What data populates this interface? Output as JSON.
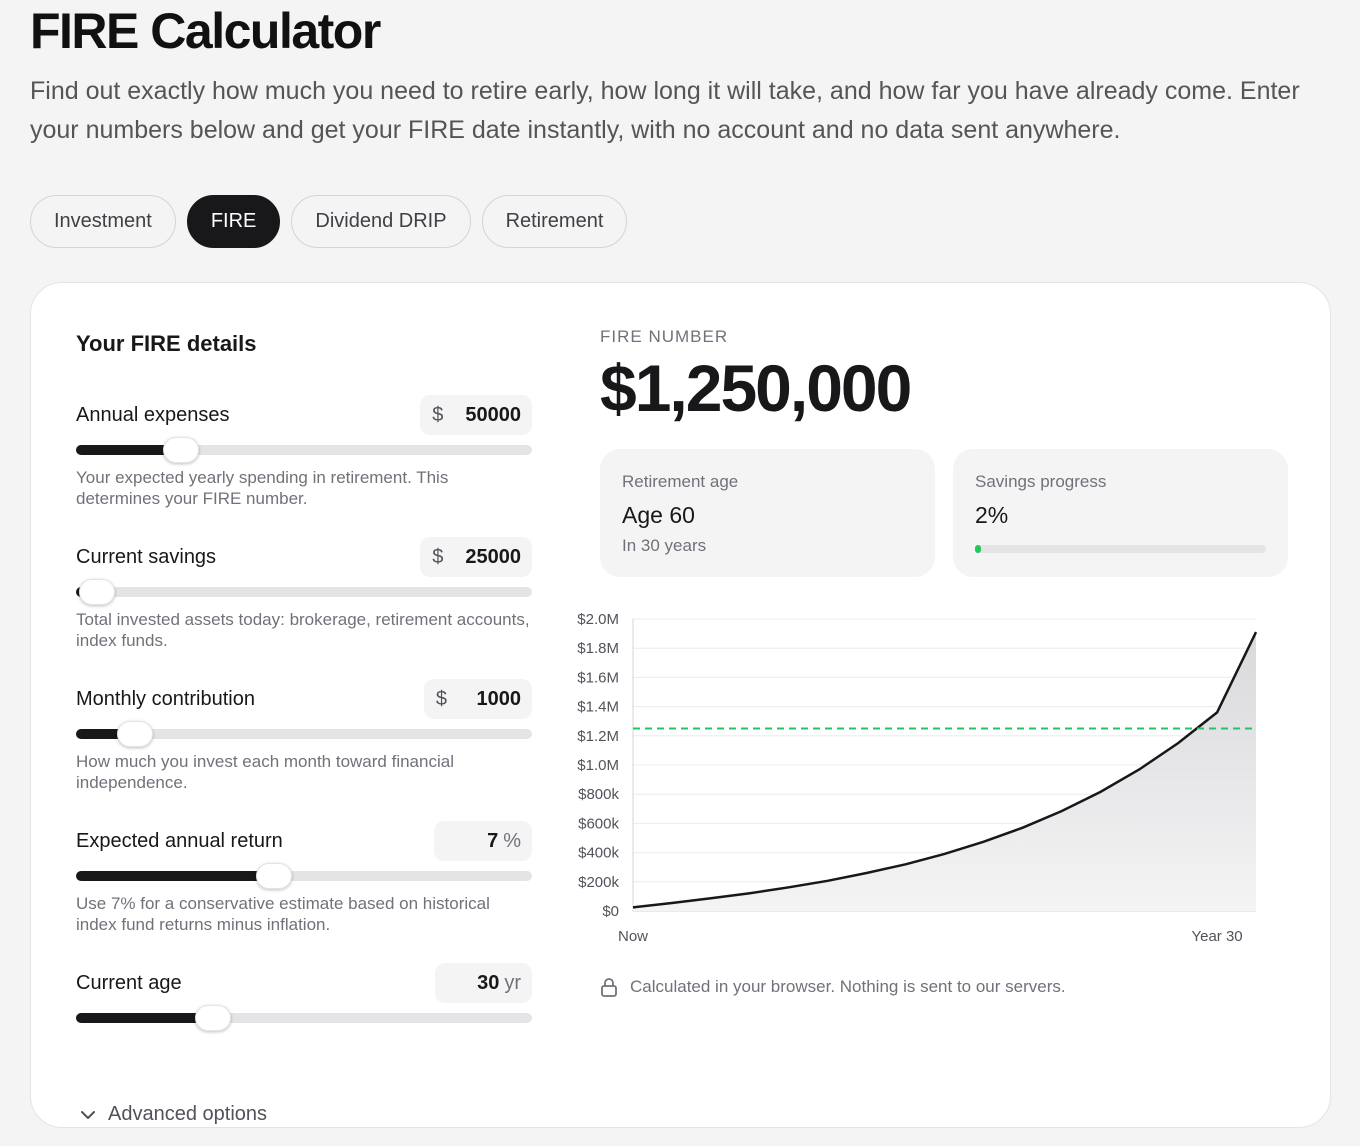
{
  "page": {
    "title": "FIRE Calculator",
    "intro": "Find out exactly how much you need to retire early, how long it will take, and how far you have already come. Enter your numbers below and get your FIRE date instantly, with no account and no data sent anywhere."
  },
  "tabs": [
    {
      "label": "Investment",
      "active": false
    },
    {
      "label": "FIRE",
      "active": true
    },
    {
      "label": "Dividend DRIP",
      "active": false
    },
    {
      "label": "Retirement",
      "active": false
    }
  ],
  "form": {
    "title": "Your FIRE details",
    "fields": [
      {
        "label": "Annual expenses",
        "prefix": "$",
        "value": "50000",
        "suffix": "",
        "slider_fraction": 0.23,
        "help": "Your expected yearly spending in retirement. This determines your FIRE number."
      },
      {
        "label": "Current savings",
        "prefix": "$",
        "value": "25000",
        "suffix": "",
        "slider_fraction": 0.045,
        "help": "Total invested assets today: brokerage, retirement accounts, index funds."
      },
      {
        "label": "Monthly contribution",
        "prefix": "$",
        "value": "1000",
        "suffix": "",
        "slider_fraction": 0.13,
        "help": "How much you invest each month toward financial independence."
      },
      {
        "label": "Expected annual return",
        "prefix": "",
        "value": "7",
        "suffix": "%",
        "slider_fraction": 0.435,
        "help": "Use 7% for a conservative estimate based on historical index fund returns minus inflation."
      },
      {
        "label": "Current age",
        "prefix": "",
        "value": "30",
        "suffix": "yr",
        "slider_fraction": 0.3,
        "help": ""
      }
    ],
    "advanced_label": "Advanced options"
  },
  "result": {
    "kicker": "FIRE NUMBER",
    "fire_number": "$1,250,000",
    "retirement": {
      "label": "Retirement age",
      "value": "Age 60",
      "sub": "In 30 years"
    },
    "savings": {
      "label": "Savings progress",
      "value": "2%",
      "progress": 0.02
    },
    "note": "Calculated in your browser. Nothing is sent to our servers."
  },
  "colors": {
    "accent": "#18181b",
    "progress": "#22c55e",
    "target_line": "#22c55e"
  },
  "chart_data": {
    "type": "area",
    "x_ticks": [
      "Now",
      "Year 30"
    ],
    "y_ticks": [
      "$0",
      "$200k",
      "$400k",
      "$600k",
      "$800k",
      "$1.0M",
      "$1.2M",
      "$1.4M",
      "$1.6M",
      "$1.8M",
      "$2.0M"
    ],
    "ylim": [
      0,
      2000000
    ],
    "x_range": [
      0,
      32
    ],
    "target": 1250000,
    "x": [
      0,
      2,
      4,
      6,
      8,
      10,
      12,
      14,
      16,
      18,
      20,
      22,
      24,
      26,
      28,
      30,
      32
    ],
    "y": [
      25000,
      55000,
      87000,
      122000,
      162000,
      207000,
      260000,
      320000,
      391000,
      474000,
      570000,
      683000,
      815000,
      969000,
      1150000,
      1360000,
      1910000
    ]
  }
}
